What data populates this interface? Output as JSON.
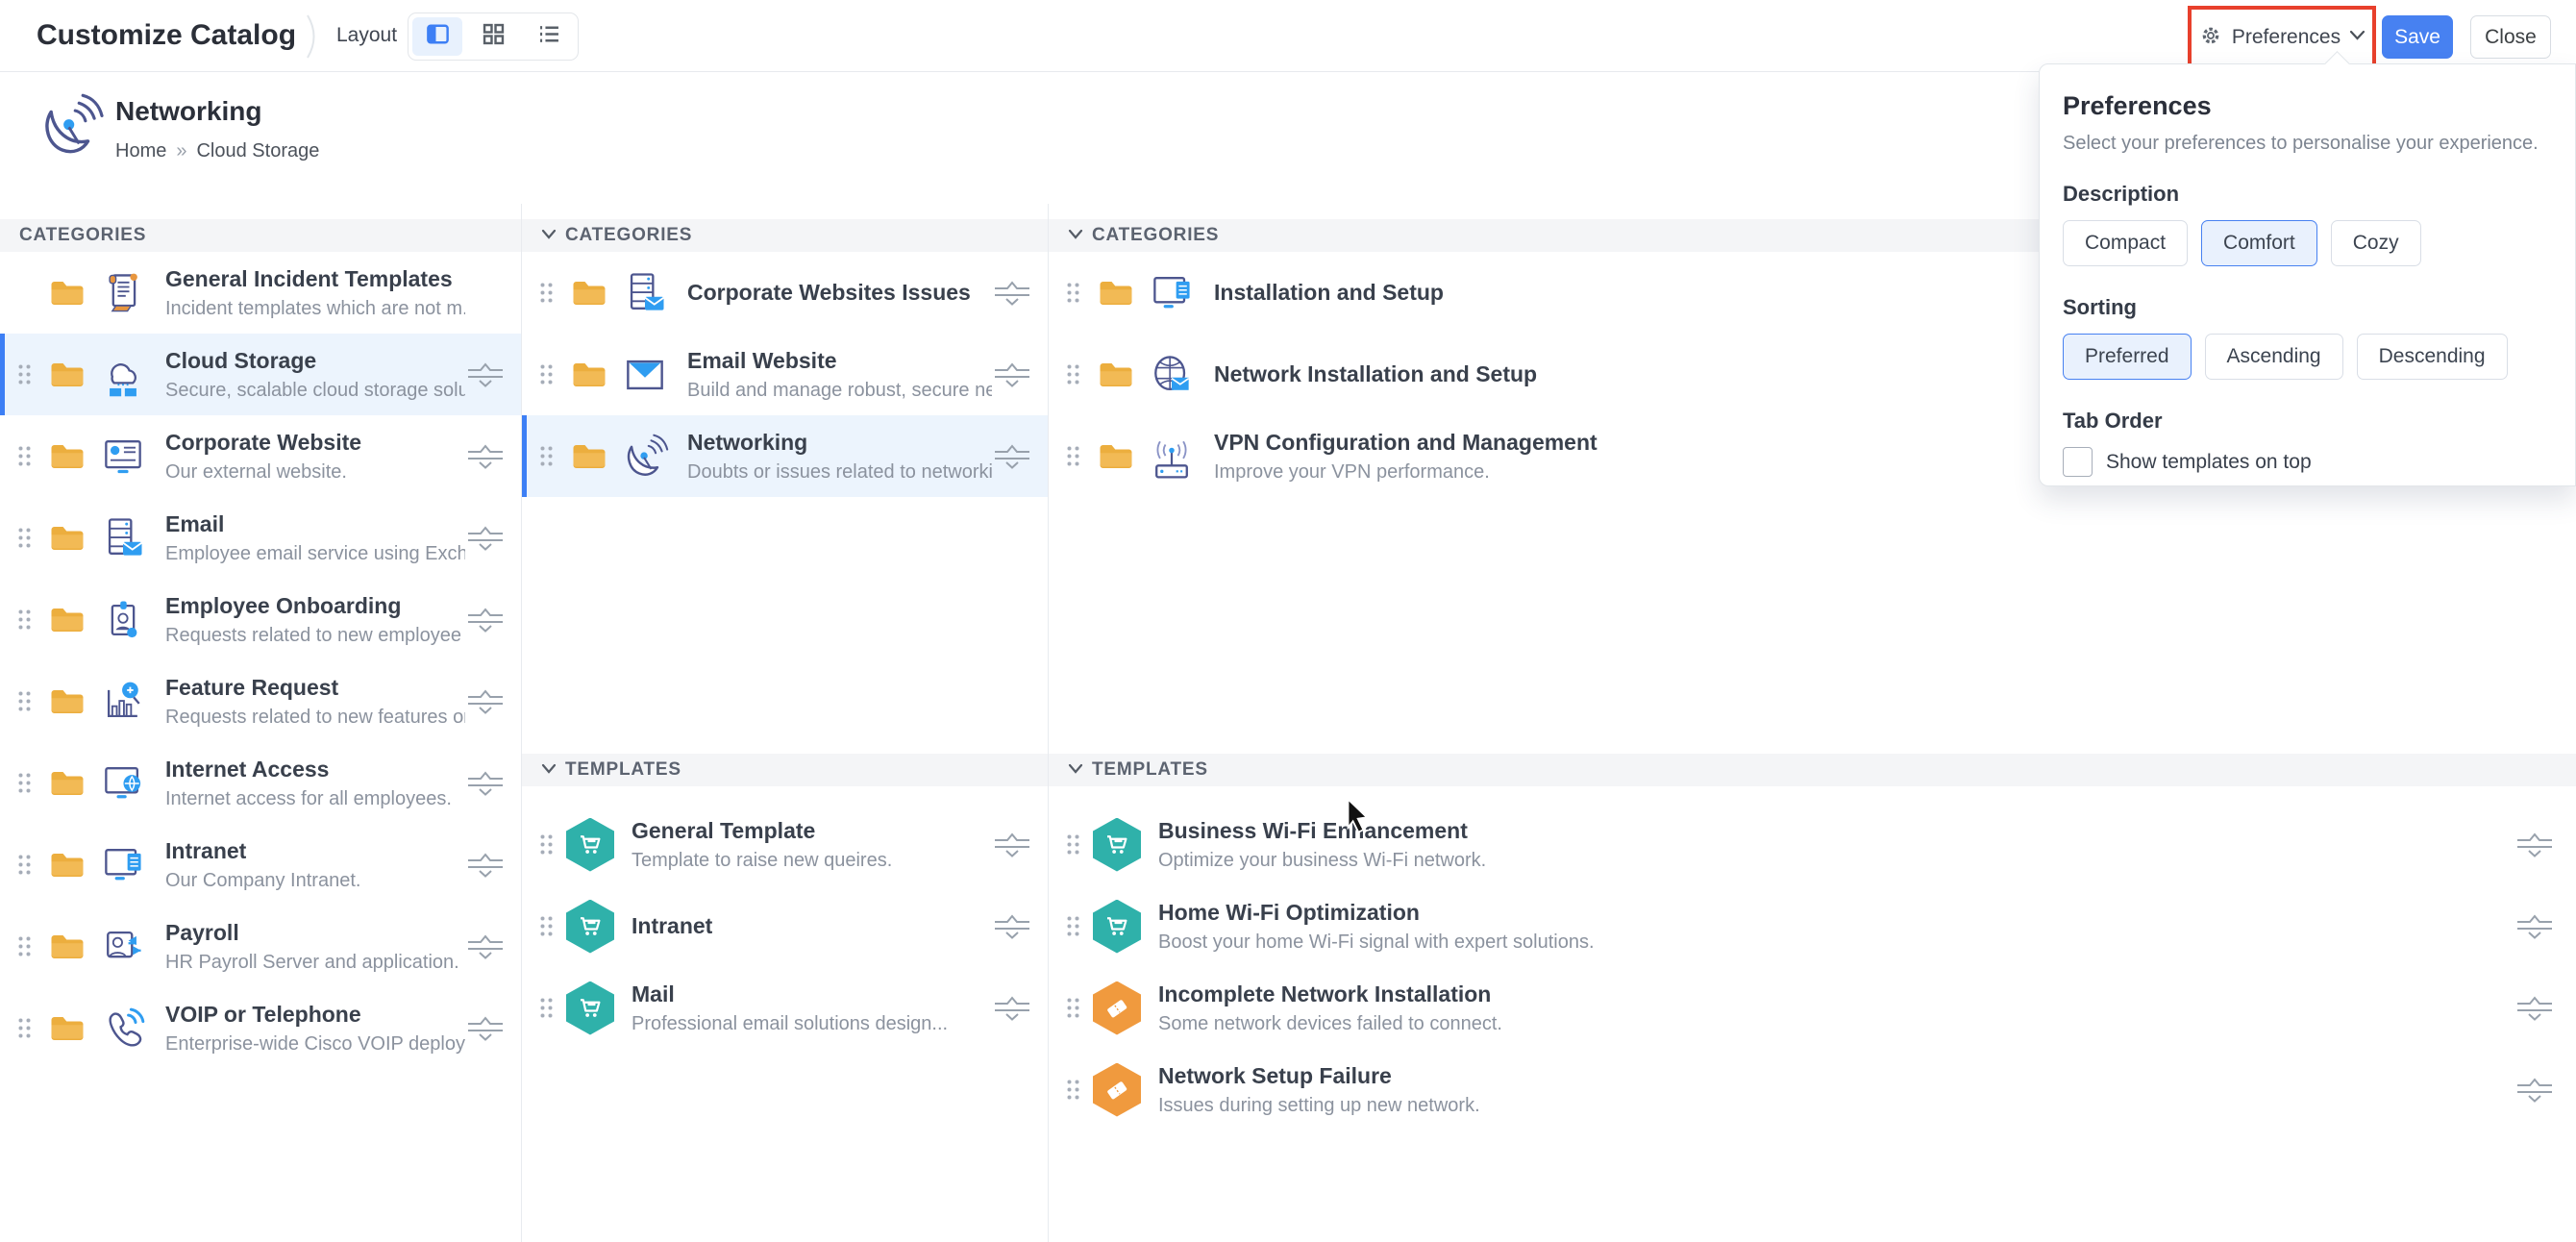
{
  "topbar": {
    "title": "Customize Catalog",
    "layout_label": "Layout",
    "layout_modes": [
      "columns-view",
      "grid-view",
      "list-view"
    ],
    "layout_active": "columns-view",
    "preferences_label": "Preferences",
    "save_label": "Save",
    "close_label": "Close"
  },
  "header": {
    "title": "Networking",
    "breadcrumb": {
      "home": "Home",
      "separator": "»",
      "current": "Cloud Storage"
    }
  },
  "columns": [
    {
      "sections": [
        {
          "label": "CATEGORIES",
          "chevron": false,
          "kind": "category",
          "items": [
            {
              "title": "General Incident Templates",
              "desc": "Incident templates which are not m...",
              "icon": "scroll",
              "draggable": false,
              "reorder": false,
              "selected": false
            },
            {
              "title": "Cloud Storage",
              "desc": "Secure, scalable cloud storage solu...",
              "icon": "cloud",
              "draggable": true,
              "reorder": true,
              "selected": true
            },
            {
              "title": "Corporate Website",
              "desc": "Our external website.",
              "icon": "monitor-user",
              "draggable": true,
              "reorder": true,
              "selected": false
            },
            {
              "title": "Email",
              "desc": "Employee email service using Exch...",
              "icon": "server-mail",
              "draggable": true,
              "reorder": true,
              "selected": false
            },
            {
              "title": "Employee Onboarding",
              "desc": "Requests related to new employee ...",
              "icon": "badge",
              "draggable": true,
              "reorder": true,
              "selected": false
            },
            {
              "title": "Feature Request",
              "desc": "Requests related to new features or ...",
              "icon": "chart-search",
              "draggable": true,
              "reorder": true,
              "selected": false
            },
            {
              "title": "Internet Access",
              "desc": "Internet access for all employees.",
              "icon": "monitor-globe",
              "draggable": true,
              "reorder": true,
              "selected": false
            },
            {
              "title": "Intranet",
              "desc": "Our Company Intranet.",
              "icon": "monitor-server",
              "draggable": true,
              "reorder": true,
              "selected": false
            },
            {
              "title": "Payroll",
              "desc": "HR Payroll Server and application.",
              "icon": "person-sync",
              "draggable": true,
              "reorder": true,
              "selected": false
            },
            {
              "title": "VOIP or Telephone",
              "desc": "Enterprise-wide Cisco VOIP deploy...",
              "icon": "phone",
              "draggable": true,
              "reorder": true,
              "selected": false
            }
          ]
        }
      ]
    },
    {
      "sections": [
        {
          "label": "CATEGORIES",
          "chevron": true,
          "kind": "category",
          "items": [
            {
              "title": "Corporate Websites Issues",
              "desc": "",
              "icon": "server-mail",
              "draggable": true,
              "reorder": true,
              "selected": false
            },
            {
              "title": "Email Website",
              "desc": "Build and manage robust, secure ne...",
              "icon": "envelope",
              "draggable": true,
              "reorder": true,
              "selected": false
            },
            {
              "title": "Networking",
              "desc": "Doubts or issues related to networki...",
              "icon": "satellite",
              "draggable": true,
              "reorder": true,
              "selected": true
            }
          ]
        },
        {
          "label": "TEMPLATES",
          "chevron": true,
          "kind": "template",
          "items": [
            {
              "title": "General Template",
              "desc": "Template to raise new queires.",
              "hex": "teal",
              "icon": "cart",
              "draggable": true,
              "reorder": true,
              "selected": false
            },
            {
              "title": "Intranet",
              "desc": "",
              "hex": "teal",
              "icon": "cart",
              "draggable": true,
              "reorder": true,
              "selected": false
            },
            {
              "title": "Mail",
              "desc": "Professional email solutions design...",
              "hex": "teal",
              "icon": "cart",
              "draggable": true,
              "reorder": true,
              "selected": false
            }
          ]
        }
      ]
    },
    {
      "sections": [
        {
          "label": "CATEGORIES",
          "chevron": true,
          "kind": "category",
          "items": [
            {
              "title": "Installation and Setup",
              "desc": "",
              "icon": "monitor-server",
              "draggable": true,
              "reorder": false,
              "selected": false
            },
            {
              "title": "Network Installation and Setup",
              "desc": "",
              "icon": "globe-mail",
              "draggable": true,
              "reorder": false,
              "selected": false
            },
            {
              "title": "VPN Configuration and Management",
              "desc": "Improve your VPN performance.",
              "icon": "router",
              "draggable": true,
              "reorder": false,
              "selected": false
            }
          ]
        },
        {
          "label": "TEMPLATES",
          "chevron": true,
          "kind": "template",
          "items": [
            {
              "title": "Business Wi-Fi Enhancement",
              "desc": "Optimize your business Wi-Fi network.",
              "hex": "teal",
              "icon": "cart",
              "draggable": true,
              "reorder": true,
              "selected": false
            },
            {
              "title": "Home Wi-Fi Optimization",
              "desc": "Boost your home Wi-Fi signal with expert solutions.",
              "hex": "teal",
              "icon": "cart",
              "draggable": true,
              "reorder": true,
              "selected": false
            },
            {
              "title": "Incomplete Network Installation",
              "desc": "Some network devices failed to connect.",
              "hex": "orange",
              "icon": "ticket",
              "draggable": true,
              "reorder": true,
              "selected": false
            },
            {
              "title": "Network Setup Failure",
              "desc": "Issues during setting up new network.",
              "hex": "orange",
              "icon": "ticket",
              "draggable": true,
              "reorder": true,
              "selected": false
            }
          ]
        }
      ]
    }
  ],
  "panel": {
    "title": "Preferences",
    "subtitle": "Select your preferences to personalise your experience.",
    "description_label": "Description",
    "description_options": [
      {
        "label": "Compact",
        "selected": false
      },
      {
        "label": "Comfort",
        "selected": true
      },
      {
        "label": "Cozy",
        "selected": false
      }
    ],
    "sorting_label": "Sorting",
    "sorting_options": [
      {
        "label": "Preferred",
        "selected": true
      },
      {
        "label": "Ascending",
        "selected": false
      },
      {
        "label": "Descending",
        "selected": false
      }
    ],
    "tab_order_label": "Tab Order",
    "tab_order_checkbox_label": "Show templates on top",
    "tab_order_checked": false
  },
  "colors": {
    "accent_blue": "#3d7ff5",
    "save_blue": "#4781f1",
    "selected_row_bg": "#ecf4fd",
    "annotation_red": "#e8402c",
    "hex_teal": "#2fb1aa",
    "hex_orange": "#f09a3e",
    "folder_yellow": "#ecae3e",
    "section_bar_bg": "#f4f5f7"
  }
}
